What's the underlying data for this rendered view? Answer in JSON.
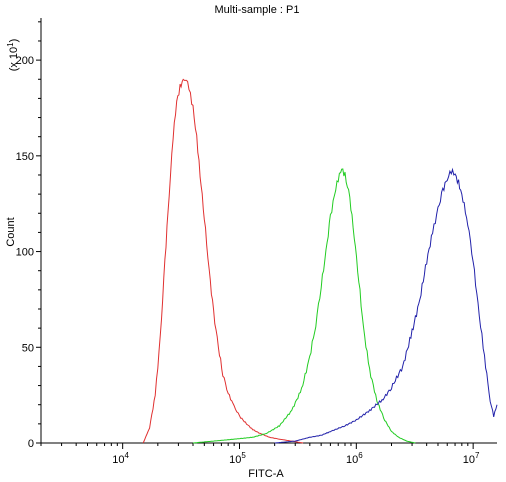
{
  "chart_data": {
    "type": "line",
    "title": "Multi-sample : P1",
    "xlabel": "FITC-A",
    "ylabel": "Count",
    "y_multiplier_label": "(x 10",
    "y_multiplier_exp": "1",
    "x_scale": "log",
    "xlim": [
      2000,
      16000000
    ],
    "ylim": [
      0,
      222
    ],
    "x_ticks": [
      {
        "value": 10000,
        "base": "10",
        "exp": "4"
      },
      {
        "value": 100000,
        "base": "10",
        "exp": "5"
      },
      {
        "value": 1000000,
        "base": "10",
        "exp": "6"
      },
      {
        "value": 10000000,
        "base": "10",
        "exp": "7"
      }
    ],
    "y_ticks": [
      0,
      50,
      100,
      150,
      200
    ],
    "grid": false,
    "series": [
      {
        "color": "#e03030",
        "x": [
          15000,
          17000,
          19000,
          21000,
          23000,
          25000,
          27000,
          29000,
          31000,
          33000,
          35000,
          37000,
          40000,
          43000,
          46000,
          50000,
          55000,
          60000,
          66000,
          72000,
          80000,
          90000,
          100000,
          115000,
          130000,
          150000,
          180000,
          220000,
          280000,
          350000
        ],
        "values": [
          0,
          8,
          25,
          55,
          95,
          130,
          160,
          178,
          186,
          190,
          191,
          185,
          175,
          160,
          140,
          118,
          90,
          68,
          50,
          36,
          26,
          19,
          14,
          10,
          7,
          5,
          3,
          2,
          1,
          0
        ]
      },
      {
        "color": "#22cc22",
        "x": [
          40000,
          60000,
          90000,
          130000,
          170000,
          220000,
          280000,
          340000,
          400000,
          450000,
          500000,
          550000,
          600000,
          650000,
          700000,
          750000,
          800000,
          880000,
          960000,
          1050000,
          1150000,
          1300000,
          1500000,
          1750000,
          2000000,
          2300000,
          2700000,
          3200000
        ],
        "values": [
          0,
          1,
          2,
          3,
          5,
          9,
          17,
          28,
          45,
          62,
          82,
          100,
          118,
          130,
          138,
          143,
          140,
          128,
          108,
          85,
          60,
          38,
          22,
          12,
          6,
          3,
          1,
          0
        ]
      },
      {
        "color": "#2222aa",
        "x": [
          200000,
          300000,
          400000,
          500000,
          600000,
          800000,
          1000000,
          1300000,
          1700000,
          2000000,
          2500000,
          3000000,
          3500000,
          4000000,
          4500000,
          5000000,
          5500000,
          6000000,
          6500000,
          7000000,
          7500000,
          8000000,
          9000000,
          10000000,
          11000000,
          12500000,
          14000000,
          15000000,
          16000000
        ],
        "values": [
          0,
          1,
          3,
          4,
          6,
          9,
          12,
          17,
          23,
          29,
          40,
          58,
          75,
          95,
          110,
          122,
          132,
          138,
          142,
          140,
          136,
          130,
          115,
          95,
          72,
          45,
          22,
          14,
          20
        ]
      }
    ]
  }
}
